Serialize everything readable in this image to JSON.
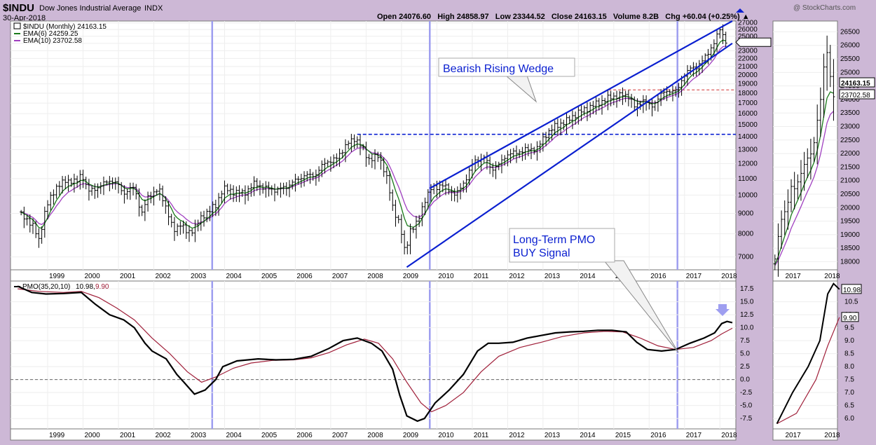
{
  "header": {
    "symbol": "$INDU",
    "name": "Dow Jones Industrial Average",
    "exchange": "INDX",
    "date": "30-Apr-2018",
    "watermark": "@ StockCharts.com",
    "ohlc_line": "Open 24076.60   High 24858.97   Low 23344.52   Close 24163.15   Volume 8.2B   Chg +60.04 (+0.25%) ▲"
  },
  "legend": {
    "price": "$INDU (Monthly) 24163.15",
    "ema6": "EMA(6) 24259.25",
    "ema10": "EMA(10) 23702.58",
    "pmo_label": "PMO(35,20,10)",
    "pmo_value": "10.98,",
    "pmo_signal": "9.90"
  },
  "annotations": {
    "wedge_line1": "Bearish Rising Wedge",
    "pmo_line1": "Long-Term PMO",
    "pmo_line2": "BUY Signal"
  },
  "colors": {
    "background": "#cdb8d6",
    "panel": "#ffffff",
    "price_bars": "#000000",
    "ema6": "#1a7a1a",
    "ema10": "#a040c0",
    "pmo": "#000000",
    "pmo_signal": "#a0203a",
    "trend_lines": "#0a1fd0",
    "support_line": "#0a1fd0",
    "resistance_line": "#d03030",
    "vertical_markers": "#9e9ef0",
    "annotation_text": "#0a1fd0"
  },
  "chart_data": [
    {
      "type": "bar",
      "name": "Main price panel (monthly OHLC bars, 1998-2018)",
      "x_ticks": [
        "1999",
        "2000",
        "2001",
        "2002",
        "2003",
        "2004",
        "2005",
        "2006",
        "2007",
        "2008",
        "2009",
        "2010",
        "2011",
        "2012",
        "2013",
        "2014",
        "2015",
        "2016",
        "2017",
        "2018"
      ],
      "y_ticks": [
        7000,
        8000,
        9000,
        10000,
        11000,
        12000,
        13000,
        14000,
        15000,
        16000,
        17000,
        18000,
        19000,
        20000,
        21000,
        22000,
        23000,
        24000,
        25000,
        26000,
        27000
      ],
      "y_tick_labels": [
        "7000",
        "8000",
        "9000",
        "10000",
        "11000",
        "12000",
        "13000",
        "14000",
        "15000",
        "16000",
        "17000",
        "18000",
        "19000",
        "20000",
        "21000",
        "22000",
        "23000",
        "24000",
        "25000",
        "26000",
        "27000"
      ],
      "ylim": [
        6500,
        27300
      ],
      "log_scale": true,
      "last_close": 24163.15,
      "last_close_label": "24163.15",
      "ema6_last": 24259.25,
      "ema10_last": 23702.58,
      "close_series": [
        [
          1998.3,
          8900
        ],
        [
          1998.6,
          8500
        ],
        [
          1998.8,
          7700
        ],
        [
          1999.0,
          9300
        ],
        [
          1999.3,
          10500
        ],
        [
          1999.6,
          10900
        ],
        [
          1999.9,
          10800
        ],
        [
          2000.0,
          11400
        ],
        [
          2000.2,
          10200
        ],
        [
          2000.5,
          10500
        ],
        [
          2000.8,
          10900
        ],
        [
          2001.0,
          10700
        ],
        [
          2001.2,
          10100
        ],
        [
          2001.5,
          10500
        ],
        [
          2001.7,
          8900
        ],
        [
          2001.9,
          10000
        ],
        [
          2002.2,
          10300
        ],
        [
          2002.4,
          9300
        ],
        [
          2002.6,
          8100
        ],
        [
          2002.8,
          8500
        ],
        [
          2003.0,
          8000
        ],
        [
          2003.2,
          8300
        ],
        [
          2003.5,
          9000
        ],
        [
          2003.8,
          9400
        ],
        [
          2004.0,
          10400
        ],
        [
          2004.3,
          10200
        ],
        [
          2004.6,
          10100
        ],
        [
          2004.9,
          10700
        ],
        [
          2005.2,
          10400
        ],
        [
          2005.5,
          10300
        ],
        [
          2005.8,
          10500
        ],
        [
          2006.0,
          10800
        ],
        [
          2006.3,
          11200
        ],
        [
          2006.6,
          11200
        ],
        [
          2006.9,
          12100
        ],
        [
          2007.2,
          12300
        ],
        [
          2007.5,
          13400
        ],
        [
          2007.75,
          13900
        ],
        [
          2007.9,
          13300
        ],
        [
          2008.1,
          12300
        ],
        [
          2008.4,
          12500
        ],
        [
          2008.6,
          11400
        ],
        [
          2008.8,
          9300
        ],
        [
          2009.0,
          8500
        ],
        [
          2009.15,
          7100
        ],
        [
          2009.3,
          8200
        ],
        [
          2009.5,
          8500
        ],
        [
          2009.7,
          9700
        ],
        [
          2009.9,
          10400
        ],
        [
          2010.2,
          10600
        ],
        [
          2010.4,
          10300
        ],
        [
          2010.6,
          10000
        ],
        [
          2010.9,
          11100
        ],
        [
          2011.1,
          12200
        ],
        [
          2011.4,
          12400
        ],
        [
          2011.6,
          11600
        ],
        [
          2011.8,
          11900
        ],
        [
          2012.0,
          12600
        ],
        [
          2012.3,
          12800
        ],
        [
          2012.6,
          13000
        ],
        [
          2012.9,
          13100
        ],
        [
          2013.1,
          14100
        ],
        [
          2013.4,
          14900
        ],
        [
          2013.7,
          15300
        ],
        [
          2014.0,
          16000
        ],
        [
          2014.3,
          16500
        ],
        [
          2014.6,
          17000
        ],
        [
          2014.9,
          17500
        ],
        [
          2015.2,
          17800
        ],
        [
          2015.5,
          17700
        ],
        [
          2015.65,
          16500
        ],
        [
          2015.9,
          17400
        ],
        [
          2016.1,
          16500
        ],
        [
          2016.35,
          17800
        ],
        [
          2016.6,
          18300
        ],
        [
          2016.85,
          18200
        ],
        [
          2017.0,
          19800
        ],
        [
          2017.2,
          20700
        ],
        [
          2017.4,
          21000
        ],
        [
          2017.6,
          21900
        ],
        [
          2017.8,
          23400
        ],
        [
          2017.95,
          24700
        ],
        [
          2018.05,
          26100
        ],
        [
          2018.15,
          25000
        ],
        [
          2018.25,
          24100
        ]
      ],
      "resistance_level": 18350,
      "support_level": 14200,
      "vertical_markers_x": [
        2003.7,
        2009.85,
        2016.85
      ],
      "wedge_upper": [
        [
          2009.85,
          10400
        ],
        [
          2018.4,
          27300
        ]
      ],
      "wedge_lower": [
        [
          2009.2,
          6600
        ],
        [
          2018.4,
          24000
        ]
      ]
    },
    {
      "type": "line",
      "name": "PMO panel",
      "x_ticks": [
        "1999",
        "2000",
        "2001",
        "2002",
        "2003",
        "2004",
        "2005",
        "2006",
        "2007",
        "2008",
        "2009",
        "2010",
        "2011",
        "2012",
        "2013",
        "2014",
        "2015",
        "2016",
        "2017",
        "2018"
      ],
      "y_ticks": [
        -7.5,
        -5.0,
        -2.5,
        0.0,
        2.5,
        5.0,
        7.5,
        10.0,
        12.5,
        15.0,
        17.5
      ],
      "y_tick_labels": [
        "-7.5",
        "-5.0",
        "-2.5",
        "0.0",
        "2.5",
        "5.0",
        "7.5",
        "10.0",
        "12.5",
        "15.0",
        "17.5"
      ],
      "ylim": [
        -9.5,
        19
      ],
      "series": [
        {
          "name": "PMO(35,20,10)",
          "points": [
            [
              1998.2,
              18
            ],
            [
              1998.6,
              16.8
            ],
            [
              1999.0,
              16.5
            ],
            [
              1999.5,
              16.6
            ],
            [
              2000.0,
              16.8
            ],
            [
              2000.4,
              14.5
            ],
            [
              2000.8,
              12.5
            ],
            [
              2001.2,
              11.5
            ],
            [
              2001.5,
              10
            ],
            [
              2001.8,
              7
            ],
            [
              2002.0,
              5.5
            ],
            [
              2002.4,
              4
            ],
            [
              2002.7,
              1
            ],
            [
              2002.9,
              -0.5
            ],
            [
              2003.2,
              -2.8
            ],
            [
              2003.5,
              -2
            ],
            [
              2003.8,
              0
            ],
            [
              2004.0,
              2.5
            ],
            [
              2004.4,
              3.6
            ],
            [
              2005.0,
              4.0
            ],
            [
              2005.5,
              3.8
            ],
            [
              2006.0,
              3.9
            ],
            [
              2006.5,
              4.5
            ],
            [
              2007.0,
              6
            ],
            [
              2007.4,
              7.5
            ],
            [
              2007.8,
              8
            ],
            [
              2008.2,
              7
            ],
            [
              2008.5,
              5.5
            ],
            [
              2008.8,
              2
            ],
            [
              2009.0,
              -3
            ],
            [
              2009.2,
              -7
            ],
            [
              2009.5,
              -8
            ],
            [
              2009.7,
              -7.5
            ],
            [
              2010.0,
              -4.5
            ],
            [
              2010.4,
              -2
            ],
            [
              2010.8,
              1
            ],
            [
              2011.2,
              5.5
            ],
            [
              2011.5,
              7
            ],
            [
              2011.8,
              7
            ],
            [
              2012.2,
              7.2
            ],
            [
              2012.6,
              8
            ],
            [
              2013.0,
              8.5
            ],
            [
              2013.4,
              9
            ],
            [
              2013.8,
              9.2
            ],
            [
              2014.2,
              9.3
            ],
            [
              2014.6,
              9.5
            ],
            [
              2015.0,
              9.5
            ],
            [
              2015.4,
              9.2
            ],
            [
              2015.7,
              7.2
            ],
            [
              2016.0,
              5.8
            ],
            [
              2016.4,
              5.5
            ],
            [
              2016.8,
              5.8
            ],
            [
              2017.2,
              7
            ],
            [
              2017.6,
              8
            ],
            [
              2017.9,
              9
            ],
            [
              2018.1,
              10.8
            ],
            [
              2018.25,
              11.2
            ],
            [
              2018.4,
              10.98
            ]
          ]
        },
        {
          "name": "Signal",
          "points": [
            [
              1998.2,
              17.5
            ],
            [
              1998.8,
              17
            ],
            [
              1999.5,
              16.8
            ],
            [
              2000.0,
              17.0
            ],
            [
              2000.5,
              15.8
            ],
            [
              2001.0,
              13.8
            ],
            [
              2001.5,
              11.5
            ],
            [
              2002.0,
              8
            ],
            [
              2002.5,
              5
            ],
            [
              2003.0,
              1.5
            ],
            [
              2003.4,
              -0.5
            ],
            [
              2003.8,
              0.5
            ],
            [
              2004.3,
              2.2
            ],
            [
              2004.8,
              3.2
            ],
            [
              2005.4,
              3.7
            ],
            [
              2006.0,
              3.8
            ],
            [
              2006.5,
              4.2
            ],
            [
              2007.0,
              5.2
            ],
            [
              2007.5,
              6.7
            ],
            [
              2008.0,
              7.8
            ],
            [
              2008.4,
              7.0
            ],
            [
              2008.8,
              4.0
            ],
            [
              2009.2,
              -0.5
            ],
            [
              2009.6,
              -4.5
            ],
            [
              2009.9,
              -6.2
            ],
            [
              2010.3,
              -5
            ],
            [
              2010.8,
              -2.5
            ],
            [
              2011.3,
              1.5
            ],
            [
              2011.8,
              4.5
            ],
            [
              2012.4,
              6.2
            ],
            [
              2013.0,
              7.2
            ],
            [
              2013.6,
              8.3
            ],
            [
              2014.2,
              9
            ],
            [
              2014.8,
              9.3
            ],
            [
              2015.3,
              9.2
            ],
            [
              2015.8,
              8
            ],
            [
              2016.3,
              6.5
            ],
            [
              2016.8,
              5.8
            ],
            [
              2017.3,
              6.2
            ],
            [
              2017.8,
              7.5
            ],
            [
              2018.1,
              8.8
            ],
            [
              2018.4,
              9.9
            ]
          ]
        }
      ],
      "zero_line": 0,
      "last_pmo_label": "10.98",
      "last_signal_label": "9.90"
    },
    {
      "type": "bar",
      "name": "Zoomed price panel (2017-2018)",
      "x_ticks": [
        "2017",
        "2018"
      ],
      "y_ticks": [
        18000,
        18500,
        19000,
        19500,
        20000,
        20500,
        21000,
        21500,
        22000,
        22500,
        23000,
        23500,
        24000,
        24500,
        25000,
        25500,
        26000,
        26500
      ],
      "y_tick_labels": [
        "18000",
        "18500",
        "19000",
        "19500",
        "20000",
        "20500",
        "21000",
        "21500",
        "22000",
        "22500",
        "23000",
        "23500",
        "24000",
        "24500",
        "25000",
        "25500",
        "26000",
        "26500"
      ],
      "ylim": [
        17700,
        26900
      ],
      "last_close_label": "24163.15",
      "ema10_label": "23702.58",
      "close_series": [
        [
          2016.75,
          18100
        ],
        [
          2016.85,
          19100
        ],
        [
          2016.95,
          19800
        ],
        [
          2017.05,
          19900
        ],
        [
          2017.15,
          20800
        ],
        [
          2017.25,
          20700
        ],
        [
          2017.35,
          21000
        ],
        [
          2017.45,
          21400
        ],
        [
          2017.55,
          21800
        ],
        [
          2017.65,
          21900
        ],
        [
          2017.75,
          22400
        ],
        [
          2017.85,
          23400
        ],
        [
          2017.95,
          24300
        ],
        [
          2018.05,
          26100
        ],
        [
          2018.15,
          25000
        ],
        [
          2018.25,
          24100
        ]
      ]
    },
    {
      "type": "line",
      "name": "Zoomed PMO panel (2017-2018)",
      "x_ticks": [
        "2017",
        "2018"
      ],
      "y_ticks": [
        6.0,
        6.5,
        7.0,
        7.5,
        8.0,
        8.5,
        9.0,
        9.5,
        10.0,
        10.5
      ],
      "y_tick_labels": [
        "6.0",
        "6.5",
        "7.0",
        "7.5",
        "8.0",
        "8.5",
        "9.0",
        "9.5",
        "10.0",
        "10.5"
      ],
      "ylim": [
        5.6,
        11.3
      ],
      "last_pmo_label": "10.98",
      "last_signal_label": "9.90"
    }
  ]
}
